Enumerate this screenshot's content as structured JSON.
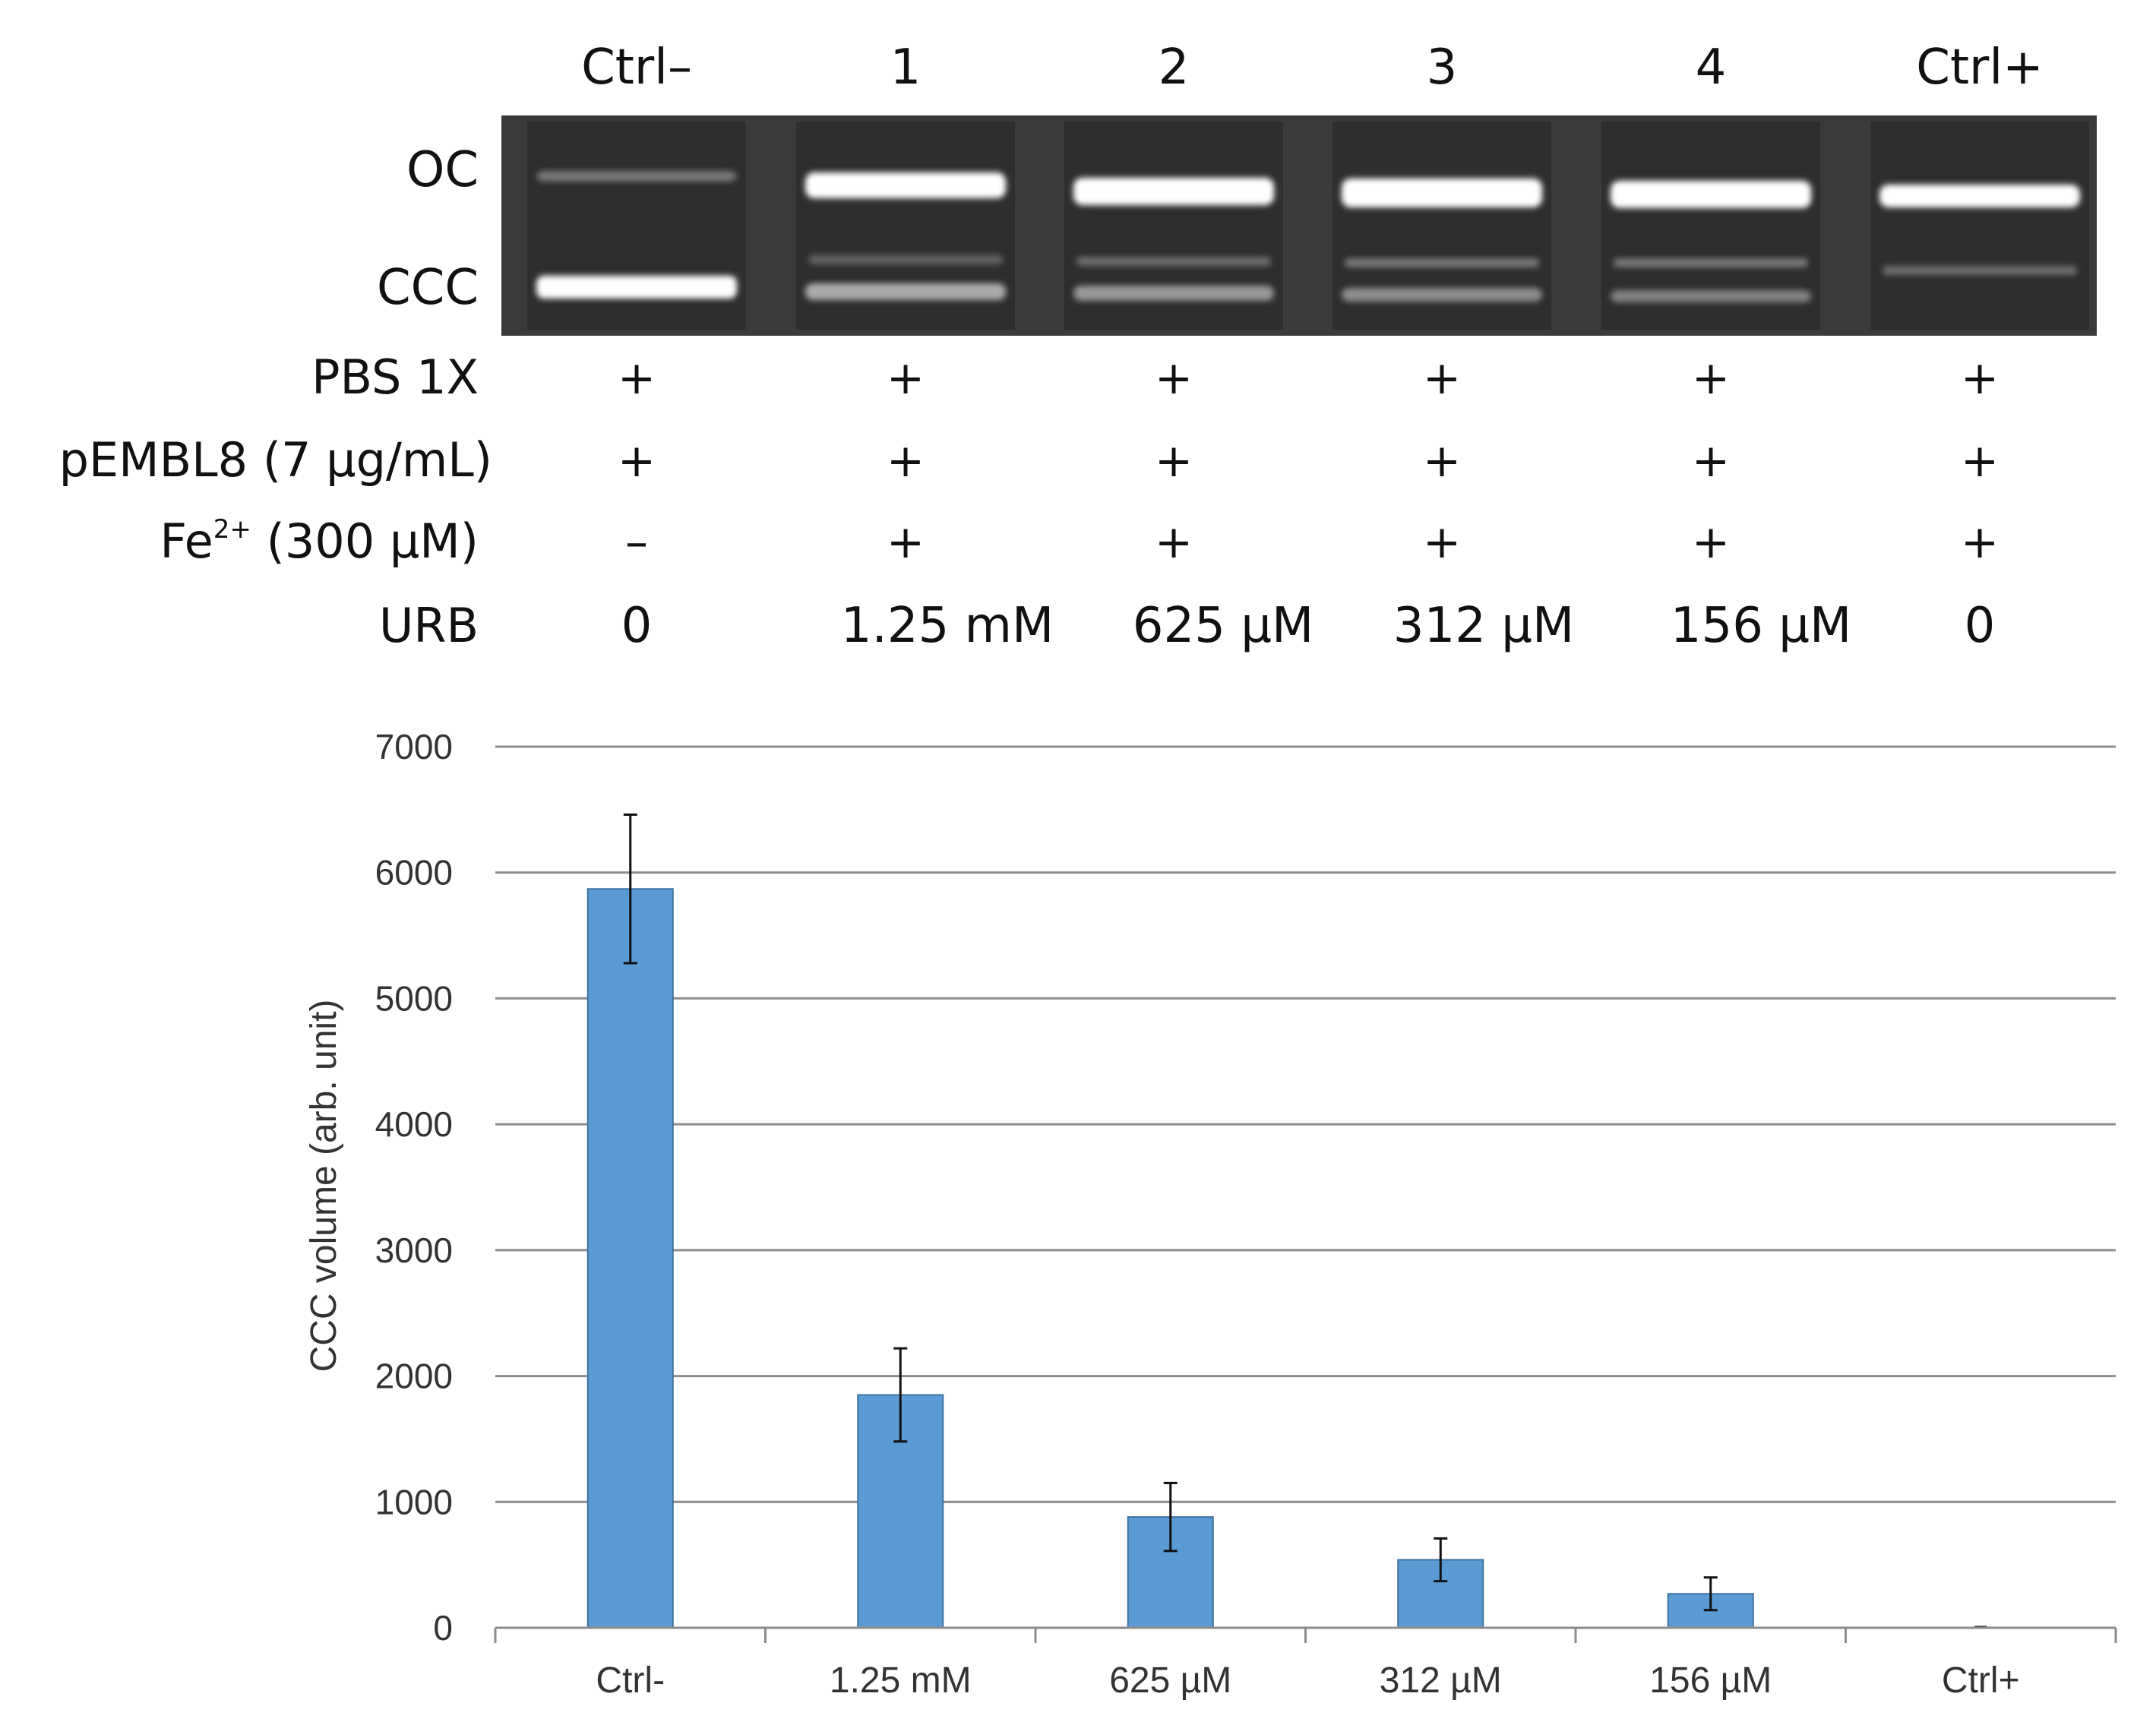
{
  "gel": {
    "lane_labels": [
      "Ctrl–",
      "1",
      "2",
      "3",
      "4",
      "Ctrl+"
    ],
    "band_labels": {
      "oc": "OC",
      "ccc": "CCC"
    },
    "conditions": [
      {
        "label": "PBS 1X",
        "values": [
          "+",
          "+",
          "+",
          "+",
          "+",
          "+"
        ]
      },
      {
        "label": "pEMBL8 (7 µg/mL)",
        "values": [
          "+",
          "+",
          "+",
          "+",
          "+",
          "+"
        ]
      },
      {
        "label_main": "Fe",
        "label_sup": "2+",
        "label_rest": " (300 µM)",
        "values": [
          "–",
          "+",
          "+",
          "+",
          "+",
          "+"
        ]
      },
      {
        "label": "URB",
        "values": [
          "0",
          "1.25 mM",
          "625 µM",
          "312 µM",
          "156 µM",
          "0"
        ]
      }
    ]
  },
  "chart_data": {
    "type": "bar",
    "categories": [
      "Ctrl-",
      "1.25 mM",
      "625 µM",
      "312 µM",
      "156 µM",
      "Ctrl+"
    ],
    "values": [
      5870,
      1850,
      880,
      540,
      270,
      0
    ],
    "errors": [
      590,
      370,
      270,
      170,
      130,
      0
    ],
    "ylabel": "CCC volume (arb. unit)",
    "xlabel": "",
    "ylim": [
      0,
      7000
    ],
    "yticks": [
      0,
      1000,
      2000,
      3000,
      4000,
      5000,
      6000,
      7000
    ],
    "grid": true,
    "bar_color": "#5b9bd5"
  }
}
